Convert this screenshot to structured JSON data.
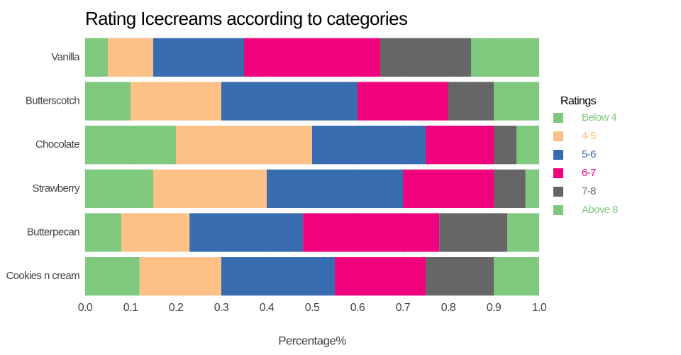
{
  "chart_data": {
    "type": "stacked_barh",
    "title": "Rating Icecreams according to categories",
    "xlabel": "Percentage%",
    "legend_title": "Ratings",
    "legend": "right",
    "grid": true,
    "categories": [
      "Vanilla",
      "Butterscotch",
      "Chocolate",
      "Strawberry",
      "Butterpecan",
      "Cookies n cream"
    ],
    "series": [
      {
        "name": "Below 4",
        "color": "#7fc97f",
        "values": [
          0.05,
          0.1,
          0.2,
          0.15,
          0.08,
          0.12
        ]
      },
      {
        "name": "4-5",
        "color": "#fdc086",
        "values": [
          0.1,
          0.2,
          0.3,
          0.25,
          0.15,
          0.18
        ]
      },
      {
        "name": "5-6",
        "color": "#386cb0",
        "values": [
          0.2,
          0.3,
          0.25,
          0.3,
          0.25,
          0.25
        ]
      },
      {
        "name": "6-7",
        "color": "#f0027f",
        "values": [
          0.3,
          0.2,
          0.15,
          0.2,
          0.3,
          0.2
        ]
      },
      {
        "name": "7-8",
        "color": "#666666",
        "values": [
          0.2,
          0.1,
          0.05,
          0.07,
          0.15,
          0.15
        ]
      },
      {
        "name": "Above 8",
        "color": "#7fc97f",
        "values": [
          0.15,
          0.1,
          0.05,
          0.03,
          0.07,
          0.1
        ]
      }
    ],
    "xlim": [
      0,
      1
    ],
    "xticks": [
      {
        "value": 0,
        "label": "0.0"
      },
      0.1,
      0.2,
      0.3,
      0.4,
      0.5,
      0.6,
      0.7,
      0.8,
      0.9,
      {
        "value": 1,
        "label": "1.0"
      }
    ]
  }
}
